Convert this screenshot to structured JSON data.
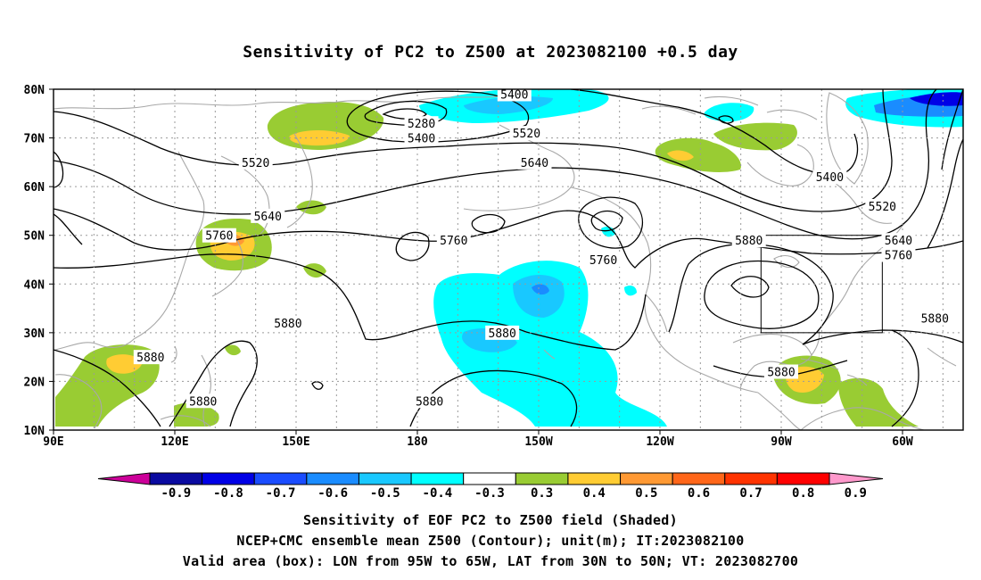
{
  "title": "Sensitivity of PC2 to Z500 at 2023082100 +0.5 day",
  "map": {
    "lon_labels": [
      "90E",
      "120E",
      "150E",
      "180",
      "150W",
      "120W",
      "90W",
      "60W"
    ],
    "lat_labels": [
      "80N",
      "70N",
      "60N",
      "50N",
      "40N",
      "30N",
      "20N",
      "10N"
    ],
    "lon_range_deg": [
      90,
      315
    ],
    "lat_range_deg": [
      10,
      80
    ],
    "grid": "dotted",
    "coastline_color": "#a8a8a8",
    "contour_color": "#000000",
    "contour_labels": [
      {
        "text": "5400",
        "lon": 204,
        "lat": 79
      },
      {
        "text": "5280",
        "lon": 181,
        "lat": 73
      },
      {
        "text": "5400",
        "lon": 181,
        "lat": 70
      },
      {
        "text": "5520",
        "lon": 207,
        "lat": 71
      },
      {
        "text": "5520",
        "lon": 140,
        "lat": 65
      },
      {
        "text": "5640",
        "lon": 209,
        "lat": 65
      },
      {
        "text": "5400",
        "lon": 282,
        "lat": 62
      },
      {
        "text": "5520",
        "lon": 295,
        "lat": 56
      },
      {
        "text": "5640",
        "lon": 143,
        "lat": 54
      },
      {
        "text": "5760",
        "lon": 131,
        "lat": 50
      },
      {
        "text": "5760",
        "lon": 189,
        "lat": 49
      },
      {
        "text": "5880",
        "lon": 262,
        "lat": 49
      },
      {
        "text": "5640",
        "lon": 299,
        "lat": 49
      },
      {
        "text": "5760",
        "lon": 299,
        "lat": 46
      },
      {
        "text": "5760",
        "lon": 226,
        "lat": 45
      },
      {
        "text": "5880",
        "lon": 148,
        "lat": 32
      },
      {
        "text": "5880",
        "lon": 201,
        "lat": 30
      },
      {
        "text": "5880",
        "lon": 308,
        "lat": 33
      },
      {
        "text": "5880",
        "lon": 114,
        "lat": 25
      },
      {
        "text": "5880",
        "lon": 270,
        "lat": 22
      },
      {
        "text": "5880",
        "lon": 127,
        "lat": 16
      },
      {
        "text": "5880",
        "lon": 183,
        "lat": 16
      }
    ],
    "valid_box": {
      "lon_min": 265,
      "lon_max": 295,
      "lat_min": 30,
      "lat_max": 50
    }
  },
  "colorbar": {
    "ticks": [
      "-0.9",
      "-0.8",
      "-0.7",
      "-0.6",
      "-0.5",
      "-0.4",
      "-0.3",
      "0.3",
      "0.4",
      "0.5",
      "0.6",
      "0.7",
      "0.8",
      "0.9"
    ],
    "colors": [
      "#0a0aa0",
      "#0000e6",
      "#1a4cff",
      "#1a8cff",
      "#19c8ff",
      "#00ffff",
      "#ffffff",
      "#99cc33",
      "#ffcc33",
      "#ff9933",
      "#ff6619",
      "#ff3300",
      "#ff0000"
    ],
    "end_low_color": "#cc0099",
    "end_high_color": "#ff99cc"
  },
  "captions": [
    "Sensitivity of EOF PC2 to Z500 field (Shaded)",
    "NCEP+CMC ensemble mean Z500 (Contour); unit(m); IT:2023082100",
    "Valid area (box): LON from 95W to 65W, LAT from 30N to 50N; VT: 2023082700"
  ]
}
